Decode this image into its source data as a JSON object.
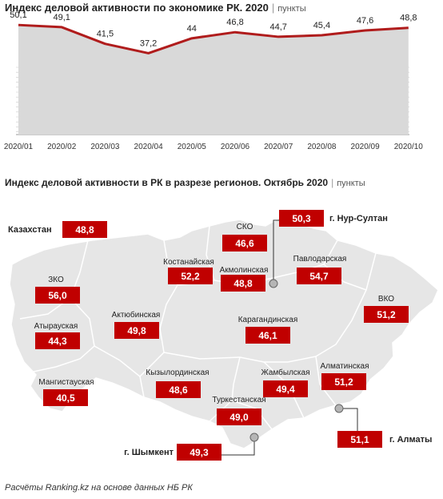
{
  "line_chart": {
    "title": "Индекс деловой активности по экономике РК. 2020",
    "unit": "пункты"
  },
  "map_chart": {
    "title": "Индекс деловой активности  в РК в разрезе регионов. Октябрь 2020",
    "unit": "пункты"
  },
  "chart_data": [
    {
      "type": "line",
      "title": "Индекс деловой активности по экономике РК. 2020",
      "unit": "пункты",
      "x": [
        "2020/01",
        "2020/02",
        "2020/03",
        "2020/04",
        "2020/05",
        "2020/06",
        "2020/07",
        "2020/08",
        "2020/09",
        "2020/10"
      ],
      "values": [
        50.1,
        49.1,
        41.5,
        37.2,
        44,
        46.8,
        44.7,
        45.4,
        47.6,
        48.8
      ],
      "labels": [
        "50,1",
        "49,1",
        "41,5",
        "37,2",
        "44",
        "46,8",
        "44,7",
        "45,4",
        "47,6",
        "48,8"
      ],
      "ylim": [
        0,
        52
      ],
      "grid": true
    },
    {
      "type": "table",
      "title": "Индекс деловой активности  в РК в разрезе регионов. Октябрь 2020",
      "unit": "пункты",
      "regions": [
        {
          "name": "Казахстан",
          "value": "48,8"
        },
        {
          "name": "г. Нур-Султан",
          "value": "50,3"
        },
        {
          "name": "СКО",
          "value": "46,6"
        },
        {
          "name": "Костанайская",
          "value": "52,2"
        },
        {
          "name": "Акмолинская",
          "value": "48,8"
        },
        {
          "name": "Павлодарская",
          "value": "54,7"
        },
        {
          "name": "ЗКО",
          "value": "56,0"
        },
        {
          "name": "ВКО",
          "value": "51,2"
        },
        {
          "name": "Актюбинская",
          "value": "49,8"
        },
        {
          "name": "Атырауская",
          "value": "44,3"
        },
        {
          "name": "Карагандинская",
          "value": "46,1"
        },
        {
          "name": "Мангистауская",
          "value": "40,5"
        },
        {
          "name": "Кызылординская",
          "value": "48,6"
        },
        {
          "name": "Жамбылская",
          "value": "49,4"
        },
        {
          "name": "Алматинская",
          "value": "51,2"
        },
        {
          "name": "Туркестанская",
          "value": "49,0"
        },
        {
          "name": "г. Шымкент",
          "value": "49,3"
        },
        {
          "name": "г. Алматы",
          "value": "51,1"
        }
      ]
    }
  ],
  "colors": {
    "accent": "#c00000",
    "line": "#b01c1c",
    "area": "#d9d9d9",
    "map": "#e6e6e6"
  },
  "footer": "Расчёты Ranking.kz на основе данных НБ РК"
}
